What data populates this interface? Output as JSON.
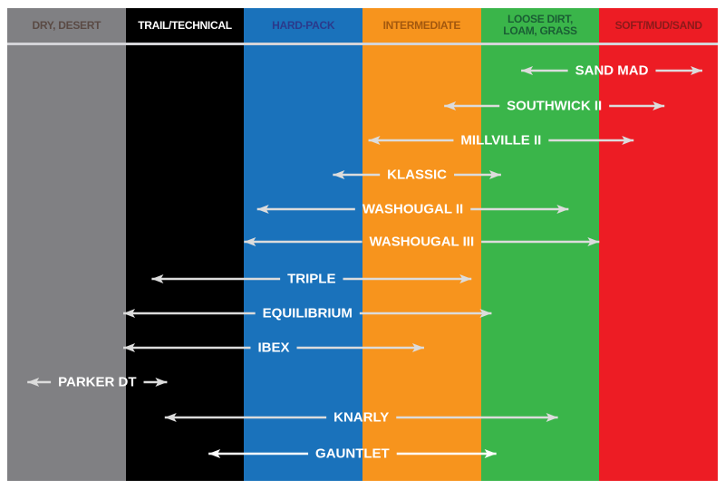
{
  "columns": [
    {
      "label": "DRY, DESERT",
      "bg": "#808083",
      "text_color": "#5a4a44"
    },
    {
      "label": "TRAIL/TECHNICAL",
      "bg": "#000000",
      "text_color": "#ffffff"
    },
    {
      "label": "HARD-PACK",
      "bg": "#1a72bb",
      "text_color": "#2b3a8c"
    },
    {
      "label": "INTERMEDIATE",
      "bg": "#f7941d",
      "text_color": "#a3580e"
    },
    {
      "label": "LOOSE DIRT, LOAM, GRASS",
      "bg": "#3ab54a",
      "text_color": "#1a5e34"
    },
    {
      "label": "SOFT/MUD/SAND",
      "bg": "#ed1c24",
      "text_color": "#8b1a1a"
    }
  ],
  "arrow_color": "#dcdcdc",
  "tires": [
    {
      "name": "SAND MAD",
      "range": [
        4.34,
        5.87
      ]
    },
    {
      "name": "SOUTHWICK II",
      "range": [
        3.69,
        5.55
      ]
    },
    {
      "name": "MILLVILLE II",
      "range": [
        3.05,
        5.29
      ]
    },
    {
      "name": "KLASSIC",
      "range": [
        2.75,
        4.17
      ]
    },
    {
      "name": "WASHOUGAL II",
      "range": [
        2.11,
        4.74
      ]
    },
    {
      "name": "WASHOUGAL III",
      "range": [
        2.0,
        5.0
      ]
    },
    {
      "name": "TRIPLE",
      "range": [
        1.22,
        3.92
      ]
    },
    {
      "name": "EQUILIBRIUM",
      "range": [
        0.98,
        4.09
      ]
    },
    {
      "name": "IBEX",
      "range": [
        0.98,
        3.52
      ]
    },
    {
      "name": "PARKER DT",
      "range": [
        0.17,
        1.35
      ]
    },
    {
      "name": "KNARLY",
      "range": [
        1.33,
        4.65
      ]
    },
    {
      "name": "GAUNTLET",
      "range": [
        1.7,
        4.13
      ],
      "color": "#ffffff"
    }
  ]
}
